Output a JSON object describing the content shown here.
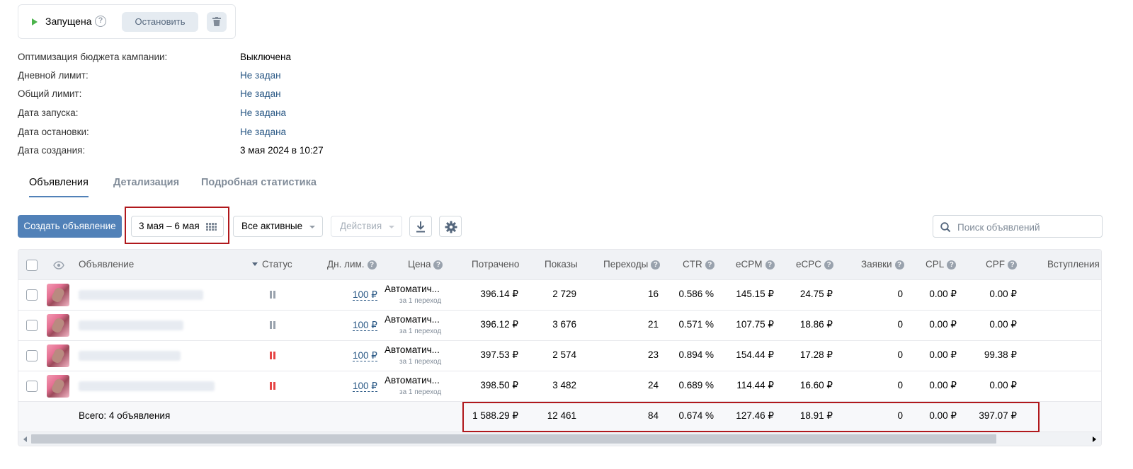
{
  "status": {
    "label": "Запущена",
    "stop_label": "Остановить"
  },
  "info": [
    {
      "label": "Оптимизация бюджета кампании:",
      "value": "Выключена",
      "is_link": false
    },
    {
      "label": "Дневной лимит:",
      "value": "Не задан",
      "is_link": true
    },
    {
      "label": "Общий лимит:",
      "value": "Не задан",
      "is_link": true
    },
    {
      "label": "Дата запуска:",
      "value": "Не задана",
      "is_link": true
    },
    {
      "label": "Дата остановки:",
      "value": "Не задана",
      "is_link": true
    },
    {
      "label": "Дата создания:",
      "value": "3 мая 2024 в 10:27",
      "is_link": false
    }
  ],
  "tabs": [
    {
      "label": "Объявления",
      "active": true
    },
    {
      "label": "Детализация",
      "active": false
    },
    {
      "label": "Подробная статистика",
      "active": false
    }
  ],
  "toolbar": {
    "create_label": "Создать объявление",
    "date_range": "3 мая – 6 мая",
    "filter_label": "Все активные",
    "actions_label": "Действия",
    "search_placeholder": "Поиск объявлений"
  },
  "table": {
    "headers": {
      "ad": "Объявление",
      "status": "Статус",
      "daily_limit": "Дн. лим.",
      "price": "Цена",
      "spent": "Потрачено",
      "impressions": "Показы",
      "clicks": "Переходы",
      "ctr": "CTR",
      "ecpm": "eCPM",
      "ecpc": "eCPC",
      "leads": "Заявки",
      "cpl": "CPL",
      "cpf": "CPF",
      "joins": "Вступления"
    },
    "rows": [
      {
        "status_color": "#99a2ad",
        "daily_limit": "100 ₽",
        "price": "Автоматич...",
        "price_sub": "за 1 переход",
        "spent": "396.14 ₽",
        "impressions": "2 729",
        "clicks": "16",
        "ctr": "0.586 %",
        "ecpm": "145.15 ₽",
        "ecpc": "24.75 ₽",
        "leads": "0",
        "cpl": "0.00 ₽",
        "cpf": "0.00 ₽"
      },
      {
        "status_color": "#99a2ad",
        "daily_limit": "100 ₽",
        "price": "Автоматич...",
        "price_sub": "за 1 переход",
        "spent": "396.12 ₽",
        "impressions": "3 676",
        "clicks": "21",
        "ctr": "0.571 %",
        "ecpm": "107.75 ₽",
        "ecpc": "18.86 ₽",
        "leads": "0",
        "cpl": "0.00 ₽",
        "cpf": "0.00 ₽"
      },
      {
        "status_color": "#e64646",
        "daily_limit": "100 ₽",
        "price": "Автоматич...",
        "price_sub": "за 1 переход",
        "spent": "397.53 ₽",
        "impressions": "2 574",
        "clicks": "23",
        "ctr": "0.894 %",
        "ecpm": "154.44 ₽",
        "ecpc": "17.28 ₽",
        "leads": "0",
        "cpl": "0.00 ₽",
        "cpf": "99.38 ₽"
      },
      {
        "status_color": "#e64646",
        "daily_limit": "100 ₽",
        "price": "Автоматич...",
        "price_sub": "за 1 переход",
        "spent": "398.50 ₽",
        "impressions": "3 482",
        "clicks": "24",
        "ctr": "0.689 %",
        "ecpm": "114.44 ₽",
        "ecpc": "16.60 ₽",
        "leads": "0",
        "cpl": "0.00 ₽",
        "cpf": "0.00 ₽"
      }
    ],
    "total": {
      "label": "Всего: 4 объявления",
      "spent": "1 588.29 ₽",
      "impressions": "12 461",
      "clicks": "84",
      "ctr": "0.674 %",
      "ecpm": "127.46 ₽",
      "ecpc": "18.91 ₽",
      "leads": "0",
      "cpl": "0.00 ₽",
      "cpf": "397.07 ₽"
    }
  },
  "colors": {
    "accent": "#5181b8",
    "link": "#2a5885",
    "highlight": "#b0181c",
    "status_active": "#4bb34b"
  }
}
